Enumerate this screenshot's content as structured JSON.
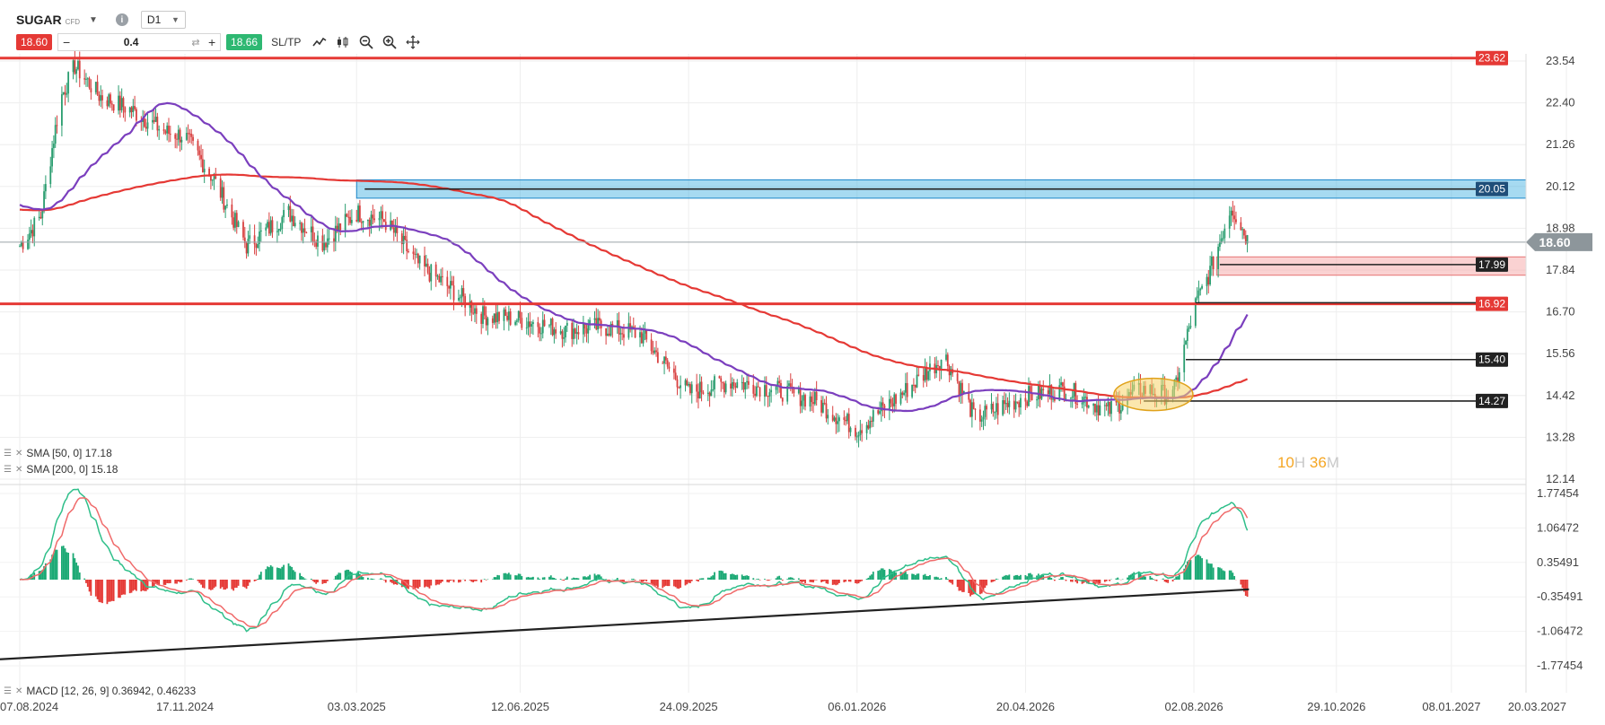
{
  "instrument": {
    "symbol": "SUGAR",
    "type": "CFD",
    "timeframe": "D1"
  },
  "trade": {
    "sell_price": "18.60",
    "buy_price": "18.66",
    "quantity": "0.4",
    "sltp_label": "SL/TP",
    "minus": "−",
    "plus": "+"
  },
  "tools": [
    "line-chart-icon",
    "candles-icon",
    "zoom-out-icon",
    "zoom-in-icon",
    "move-icon"
  ],
  "indicators": {
    "sma50": "SMA [50, 0] 17.18",
    "sma200": "SMA [200, 0] 15.18",
    "macd": "MACD [12, 26, 9] 0.36942, 0.46233"
  },
  "timer": {
    "hours": "10",
    "h_label": "H",
    "minutes": "36",
    "m_label": "M"
  },
  "colors": {
    "sell": "#e53935",
    "buy": "#2eb872",
    "sma50": "#7b3fbe",
    "sma200": "#e53935",
    "zone": "#3aaee0",
    "macd_pos": "#19a873",
    "macd_neg": "#e53935"
  },
  "chart_data": {
    "type": "candlestick",
    "price_axis": {
      "ticks": [
        "23.54",
        "22.40",
        "21.26",
        "20.12",
        "18.98",
        "17.84",
        "16.70",
        "15.56",
        "14.42",
        "13.28",
        "12.14"
      ]
    },
    "x_axis": {
      "ticks": [
        "07.08.2024",
        "17.11.2024",
        "03.03.2025",
        "12.06.2025",
        "24.09.2025",
        "06.01.2026",
        "20.04.2026",
        "02.08.2026",
        "29.10.2026",
        "08.01.2027",
        "20.03.2027"
      ]
    },
    "current_price": "18.60",
    "levels": [
      {
        "value": "23.62",
        "color": "#e53935",
        "style": "thick"
      },
      {
        "value": "20.05",
        "color": "#1f4e79",
        "style": "zone"
      },
      {
        "value": "17.99",
        "color": "#222222",
        "style": "thin"
      },
      {
        "value": "16.92",
        "color": "#e53935",
        "style": "thick"
      },
      {
        "value": "15.40",
        "color": "#222222",
        "style": "thin"
      },
      {
        "value": "14.27",
        "color": "#222222",
        "style": "thin"
      }
    ],
    "price_series": [
      [
        "07.08.2024",
        18.5
      ],
      [
        "2024-08-20",
        19.3
      ],
      [
        "2024-09-01",
        22.5
      ],
      [
        "2024-09-10",
        23.4
      ],
      [
        "2024-09-25",
        22.6
      ],
      [
        "2024-10-15",
        22.2
      ],
      [
        "2024-11-05",
        21.6
      ],
      [
        "17.11.2024",
        21.5
      ],
      [
        "2024-12-05",
        20.3
      ],
      [
        "2024-12-25",
        18.5
      ],
      [
        "2025-01-20",
        19.4
      ],
      [
        "2025-02-10",
        18.6
      ],
      [
        "03.03.2025",
        19.4
      ],
      [
        "2025-03-20",
        19.2
      ],
      [
        "2025-04-10",
        18.0
      ],
      [
        "2025-05-01",
        17.3
      ],
      [
        "2025-05-20",
        16.6
      ],
      [
        "12.06.2025",
        16.5
      ],
      [
        "2025-07-10",
        16.2
      ],
      [
        "2025-08-01",
        16.3
      ],
      [
        "2025-08-25",
        16.1
      ],
      [
        "24.09.2025",
        14.5
      ],
      [
        "2025-10-20",
        14.8
      ],
      [
        "2025-11-15",
        14.6
      ],
      [
        "2025-12-10",
        14.3
      ],
      [
        "06.01.2026",
        13.5
      ],
      [
        "2026-02-01",
        14.4
      ],
      [
        "2026-03-01",
        15.5
      ],
      [
        "2026-03-20",
        13.8
      ],
      [
        "20.04.2026",
        14.4
      ],
      [
        "2026-05-15",
        14.6
      ],
      [
        "2026-06-10",
        14.0
      ],
      [
        "2026-07-01",
        14.6
      ],
      [
        "2026-07-20",
        14.4
      ],
      [
        "02.08.2026",
        16.8
      ],
      [
        "2026-08-12",
        17.8
      ],
      [
        "2026-08-25",
        19.6
      ],
      [
        "2026-09-05",
        18.6
      ]
    ],
    "sma50_final": "17.18",
    "sma200_final": "15.18",
    "macd_axis": {
      "ticks": [
        "1.77454",
        "1.06472",
        "0.35491",
        "-0.35491",
        "-1.06472",
        "-1.77454"
      ]
    },
    "macd_values": {
      "macd": "0.36942",
      "signal": "0.46233"
    }
  }
}
